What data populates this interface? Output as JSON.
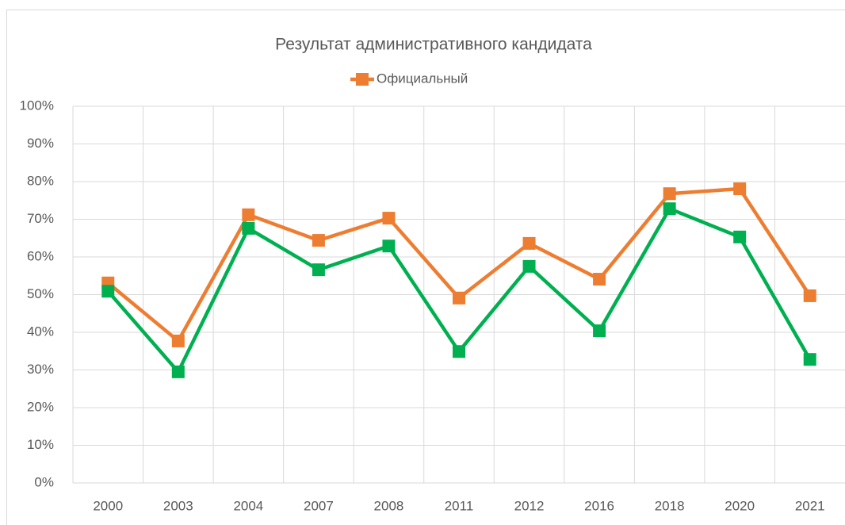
{
  "chart_data": {
    "type": "line",
    "title": "Результат административного кандидата",
    "categories": [
      "2000",
      "2003",
      "2004",
      "2007",
      "2008",
      "2011",
      "2012",
      "2016",
      "2018",
      "2020",
      "2021"
    ],
    "series": [
      {
        "name": "Официальный",
        "color": "#ed7d31",
        "values": [
          53.1,
          37.7,
          71.2,
          64.4,
          70.3,
          49.1,
          63.6,
          54.1,
          76.8,
          78.1,
          49.7
        ]
      },
      {
        "color": "#00b050",
        "values": [
          50.9,
          29.5,
          67.6,
          56.6,
          62.9,
          34.9,
          57.5,
          40.4,
          72.8,
          65.3,
          32.8
        ]
      }
    ],
    "ylim": [
      0,
      100
    ],
    "yticks": [
      {
        "value": 0,
        "label": "0%"
      },
      {
        "value": 10,
        "label": "10%"
      },
      {
        "value": 20,
        "label": "20%"
      },
      {
        "value": 30,
        "label": "30%"
      },
      {
        "value": 40,
        "label": "40%"
      },
      {
        "value": 50,
        "label": "50%"
      },
      {
        "value": 60,
        "label": "60%"
      },
      {
        "value": 70,
        "label": "70%"
      },
      {
        "value": 80,
        "label": "80%"
      },
      {
        "value": 90,
        "label": "90%"
      },
      {
        "value": 100,
        "label": "100%"
      }
    ],
    "grid": true,
    "legend": "top"
  }
}
